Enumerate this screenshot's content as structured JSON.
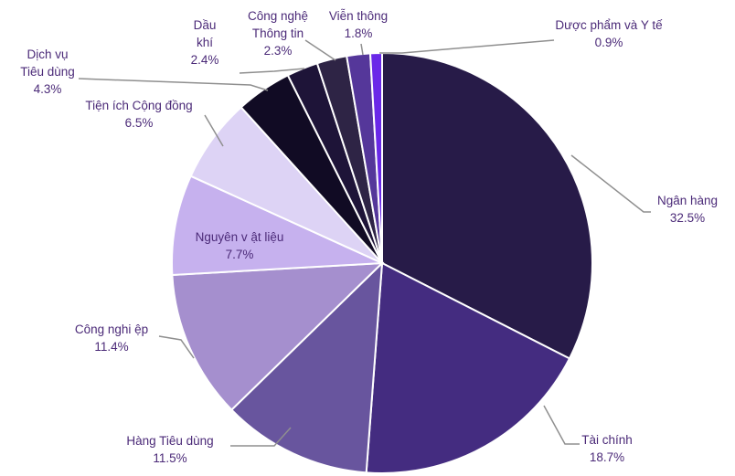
{
  "chart_data": {
    "type": "pie",
    "title": "",
    "slices": [
      {
        "name": "Ngân hàng",
        "value": 32.5,
        "label": "32.5%",
        "color": "#271b48"
      },
      {
        "name": "Tài chính",
        "value": 18.7,
        "label": "18.7%",
        "color": "#442c80"
      },
      {
        "name": "Hàng Tiêu dùng",
        "value": 11.5,
        "label": "11.5%",
        "color": "#68559e"
      },
      {
        "name": "Công nghi ệp",
        "value": 11.4,
        "label": "11.4%",
        "color": "#a58fce"
      },
      {
        "name": "Nguyên v ật liệu",
        "value": 7.7,
        "label": "7.7%",
        "color": "#c6b1ee"
      },
      {
        "name": "Tiện ích Cộng đồng",
        "value": 6.5,
        "label": "6.5%",
        "color": "#ddd3f5"
      },
      {
        "name": "Dịch vụ Tiêu dùng",
        "value": 4.3,
        "label": "4.3%",
        "color": "#110b24"
      },
      {
        "name": "Dầu khí",
        "value": 2.4,
        "label": "2.4%",
        "color": "#1e1438"
      },
      {
        "name": "Công nghệ Thông tin",
        "value": 2.3,
        "label": "2.3%",
        "color": "#2e2445"
      },
      {
        "name": "Viễn thông",
        "value": 1.8,
        "label": "1.8%",
        "color": "#55379a"
      },
      {
        "name": "Dược phẩm và Y tế",
        "value": 0.9,
        "label": "0.9%",
        "color": "#6a28e8"
      }
    ]
  }
}
